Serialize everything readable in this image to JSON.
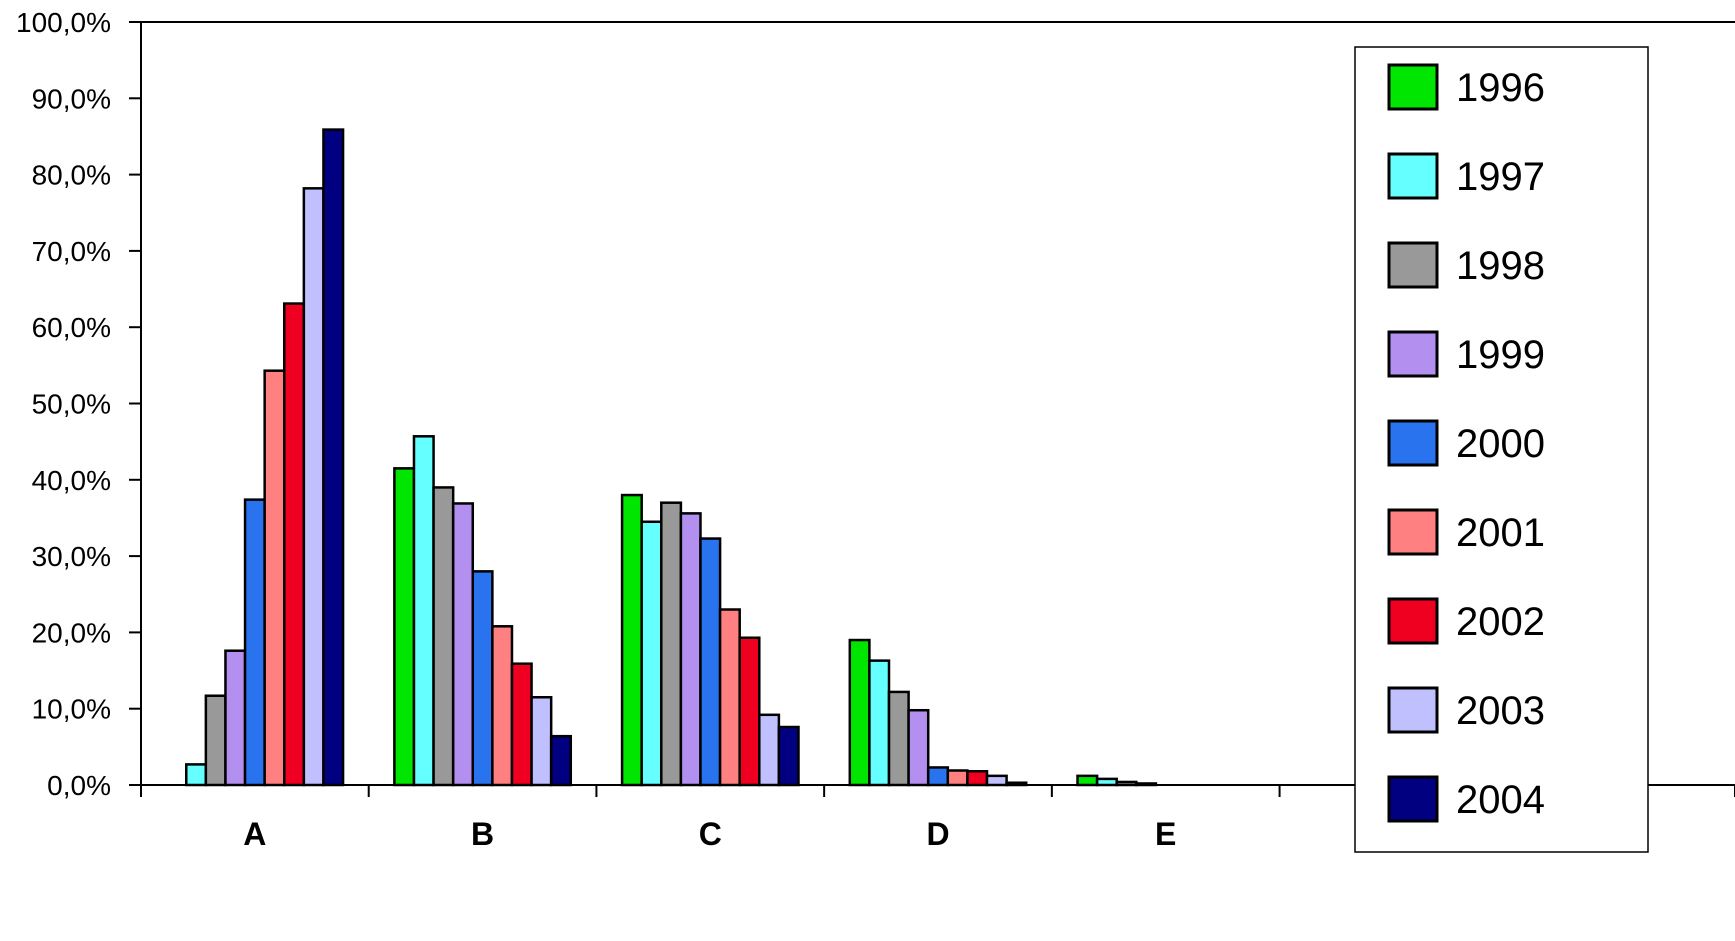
{
  "chart_data": {
    "type": "bar",
    "title": "",
    "xlabel": "",
    "ylabel": "",
    "ylim": [
      0,
      100
    ],
    "yticks": [
      "0,0%",
      "10,0%",
      "20,0%",
      "30,0%",
      "40,0%",
      "50,0%",
      "60,0%",
      "70,0%",
      "80,0%",
      "90,0%",
      "100,0%"
    ],
    "categories": [
      "A",
      "B",
      "C",
      "D",
      "E",
      "",
      ""
    ],
    "legend_position": "top-right",
    "grid": false,
    "series": [
      {
        "name": "1996",
        "color": "#00e600",
        "values": [
          0,
          41.5,
          38.0,
          19.0,
          1.2,
          null,
          null
        ]
      },
      {
        "name": "1997",
        "color": "#66ffff",
        "values": [
          2.7,
          45.7,
          34.5,
          16.3,
          0.8,
          null,
          null
        ]
      },
      {
        "name": "1998",
        "color": "#999999",
        "values": [
          11.7,
          39.0,
          37.0,
          12.2,
          0.4,
          null,
          null
        ]
      },
      {
        "name": "1999",
        "color": "#b38fef",
        "values": [
          17.6,
          36.9,
          35.6,
          9.8,
          0.2,
          null,
          null
        ]
      },
      {
        "name": "2000",
        "color": "#2a73ef",
        "values": [
          37.4,
          28.0,
          32.3,
          2.3,
          0,
          null,
          null
        ]
      },
      {
        "name": "2001",
        "color": "#ff8080",
        "values": [
          54.3,
          20.8,
          23.0,
          1.9,
          0,
          null,
          null
        ]
      },
      {
        "name": "2002",
        "color": "#f00020",
        "values": [
          63.1,
          15.9,
          19.3,
          1.8,
          0,
          null,
          null
        ]
      },
      {
        "name": "2003",
        "color": "#c0c0ff",
        "values": [
          78.2,
          11.5,
          9.2,
          1.2,
          0,
          null,
          null
        ]
      },
      {
        "name": "2004",
        "color": "#000080",
        "values": [
          85.9,
          6.4,
          7.6,
          0.3,
          0,
          null,
          null
        ]
      }
    ]
  }
}
